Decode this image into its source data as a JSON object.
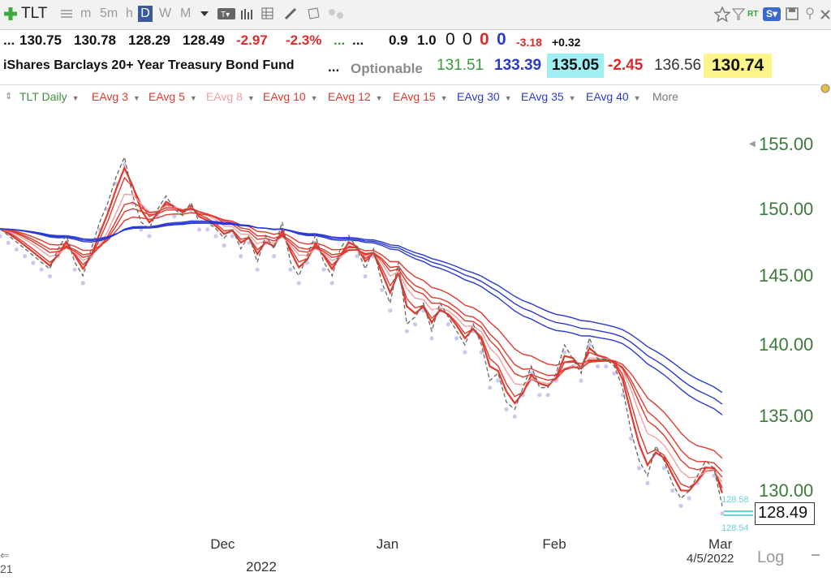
{
  "toolbar": {
    "symbol": "TLT",
    "periods": [
      "m",
      "5m",
      "h",
      "D",
      "W",
      "M"
    ],
    "active_period": "D",
    "right_labels": {
      "rt": "RT",
      "s": "S"
    }
  },
  "quote": {
    "open": "130.75",
    "high": "130.78",
    "low": "128.29",
    "close": "128.49",
    "change": "-2.97",
    "change_pct": "-2.3%",
    "dots1": "...",
    "dots2": "...",
    "dots3": "...",
    "v1": "0.9",
    "v2": "1.0",
    "n1": "0",
    "n2": "0",
    "n3": "0",
    "n4": "0",
    "n5": "-3.18",
    "n6": "+0.32",
    "name": "iShares Barclays 20+ Year Treasury Bond Fund",
    "dots4": "...",
    "optionable": "Optionable",
    "p1": "131.51",
    "p2": "133.39",
    "p3": "135.05",
    "p4": "-2.45",
    "p5": "136.56",
    "p6": "130.74"
  },
  "legend": [
    {
      "label": "TLT Daily",
      "color": "#3f8f3f"
    },
    {
      "label": "EAvg 3",
      "color": "#e03a2e"
    },
    {
      "label": "EAvg 5",
      "color": "#e03a2e"
    },
    {
      "label": "EAvg 8",
      "color": "#f0a0a0"
    },
    {
      "label": "EAvg 10",
      "color": "#e03a2e"
    },
    {
      "label": "EAvg 12",
      "color": "#e03a2e"
    },
    {
      "label": "EAvg 15",
      "color": "#e03a2e"
    },
    {
      "label": "EAvg 30",
      "color": "#2a3ad0"
    },
    {
      "label": "EAvg 35",
      "color": "#2a3ad0"
    },
    {
      "label": "EAvg 40",
      "color": "#2a3ad0"
    },
    {
      "label": "More",
      "color": "#777777"
    }
  ],
  "chart_data": {
    "type": "line",
    "scale": "log",
    "ylim": [
      127,
      157
    ],
    "yticks": [
      "155.00",
      "150.00",
      "145.00",
      "140.00",
      "135.00",
      "130.00"
    ],
    "ytick_values": [
      155,
      150,
      145,
      140,
      135,
      130
    ],
    "xticks": [
      "Dec",
      "Jan",
      "Feb",
      "Mar"
    ],
    "xtick_index": [
      27,
      47,
      67,
      87
    ],
    "year_label": "2022",
    "date_label": "4/5/2022",
    "last_price": "128.49",
    "mini_labels": [
      "128.58",
      "128.54"
    ],
    "scale_label": "Log",
    "edge_label": "21",
    "price_close": [
      148.5,
      148,
      147.5,
      147,
      146.5,
      146,
      145.5,
      147,
      148,
      146,
      145,
      147,
      149,
      150.5,
      152.5,
      154,
      151,
      149,
      148.5,
      150,
      151,
      150,
      149.5,
      150.5,
      149,
      149,
      148.5,
      147.8,
      148.5,
      147,
      148,
      146,
      148,
      147,
      149,
      146,
      145,
      146.5,
      148,
      146,
      145,
      147,
      148,
      147,
      145.5,
      147,
      144.5,
      143,
      146,
      141.5,
      142,
      143,
      141,
      143,
      142,
      141,
      140,
      141.5,
      140,
      137.5,
      138,
      136,
      135.5,
      137,
      138.5,
      137,
      137,
      138,
      140,
      139,
      138,
      140.5,
      139,
      139,
      138.5,
      137,
      134,
      132,
      131,
      133,
      132,
      130.5,
      129.5,
      130,
      131,
      132,
      131.5,
      129
    ],
    "series": [
      {
        "name": "EAvg 3",
        "color": "#e03a2e",
        "width": 2.2,
        "kind": "red",
        "alpha": 0.66,
        "offset": 0
      },
      {
        "name": "EAvg 5",
        "color": "#e03a2e",
        "width": 1.4,
        "kind": "red",
        "alpha": 0.5,
        "offset": 0
      },
      {
        "name": "EAvg 8",
        "color": "#f0a0a0",
        "width": 1.4,
        "kind": "red",
        "alpha": 0.33,
        "offset": 0
      },
      {
        "name": "EAvg 10",
        "color": "#e03a2e",
        "width": 1.4,
        "kind": "red",
        "alpha": 0.25,
        "offset": 0
      },
      {
        "name": "EAvg 12",
        "color": "#e03a2e",
        "width": 1.4,
        "kind": "red",
        "alpha": 0.2,
        "offset": 0
      },
      {
        "name": "EAvg 15",
        "color": "#e03a2e",
        "width": 1.4,
        "kind": "red",
        "alpha": 0.14,
        "offset": 0
      },
      {
        "name": "EAvg 30",
        "color": "#2a3ad0",
        "width": 1.4,
        "kind": "blue",
        "alpha": 0.065,
        "offset": 0
      },
      {
        "name": "EAvg 35",
        "color": "#2a3ad0",
        "width": 1.4,
        "kind": "blue",
        "alpha": 0.056,
        "offset": 0
      },
      {
        "name": "EAvg 40",
        "color": "#2a3ad0",
        "width": 1.4,
        "kind": "blue",
        "alpha": 0.048,
        "offset": 0
      }
    ]
  }
}
